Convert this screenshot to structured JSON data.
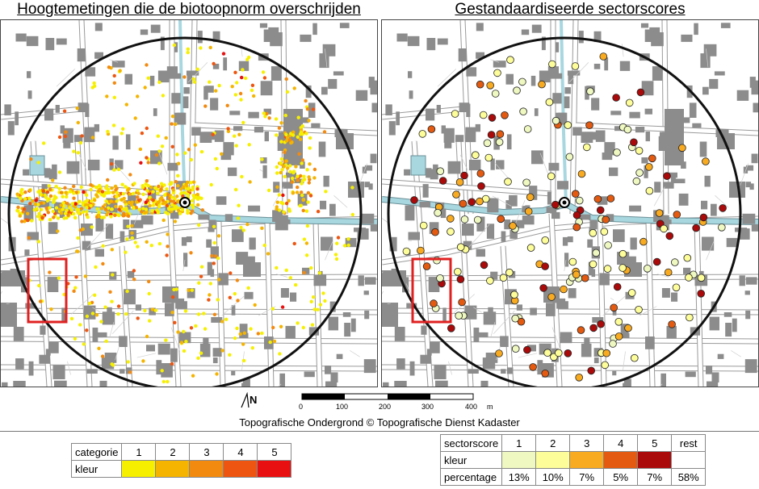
{
  "titles": {
    "left": "Hoogtemetingen die de biotoopnorm overschrijden",
    "right": "Gestandaardiseerde sectorscores"
  },
  "north_label": "N",
  "scale": {
    "labels": [
      "0",
      "100",
      "200",
      "300",
      "400"
    ],
    "unit": "m"
  },
  "credit": "Topografische Ondergrond © Topografische Dienst Kadaster",
  "legend_left": {
    "row1_label": "categorie",
    "row2_label": "kleur",
    "categories": [
      "1",
      "2",
      "3",
      "4",
      "5"
    ],
    "colors": [
      "#f6f000",
      "#f5b400",
      "#f38a10",
      "#ee5510",
      "#e81010"
    ]
  },
  "legend_right": {
    "row1_label": "sectorscore",
    "row2_label": "kleur",
    "row3_label": "percentage",
    "scores": [
      "1",
      "2",
      "3",
      "4",
      "5",
      "rest"
    ],
    "colors": [
      "#eef8c0",
      "#fdfd9a",
      "#f8aa20",
      "#e35a10",
      "#aa0a0a",
      "#ffffff"
    ],
    "percentages": [
      "13%",
      "10%",
      "7%",
      "5%",
      "7%",
      "58%"
    ]
  },
  "map_colors": {
    "building": "#8c8c8c",
    "road_outline": "#9a9a9a",
    "water": "#a8d7e0",
    "circle": "#111111",
    "highlight_box": "#e02020"
  },
  "icons": {
    "mill_marker": "mill-marker-icon",
    "north_arrow": "north-arrow-icon"
  }
}
